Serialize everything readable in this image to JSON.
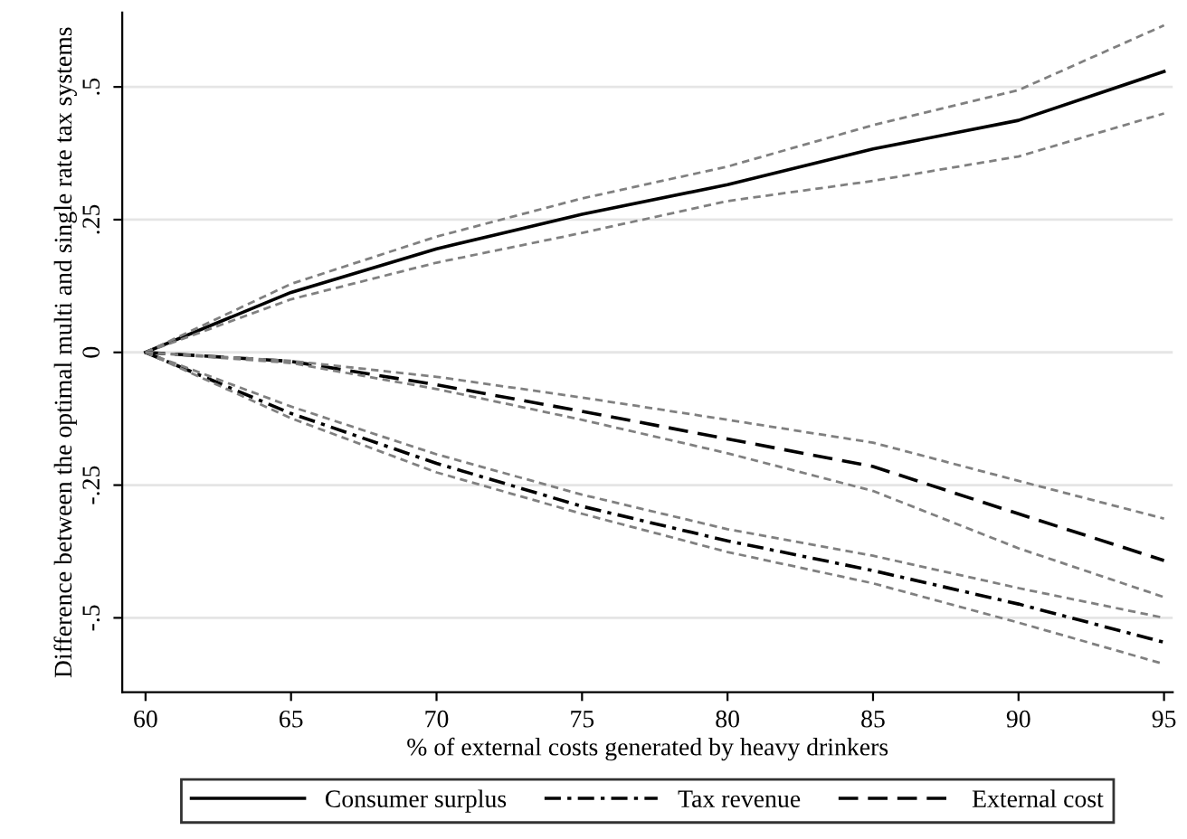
{
  "chart_data": {
    "type": "line",
    "xlabel": "% of external costs generated by heavy drinkers",
    "ylabel": "Difference between the optimal multi and single rate tax systems",
    "x": [
      60,
      65,
      70,
      75,
      80,
      85,
      90,
      95
    ],
    "series": [
      {
        "name": "Consumer surplus",
        "color": "#000000",
        "line_style": "solid",
        "values": [
          0,
          0.113,
          0.195,
          0.26,
          0.316,
          0.383,
          0.437,
          0.529
        ]
      },
      {
        "color": "#808080",
        "line_style": "dotted",
        "values": [
          0,
          0.129,
          0.218,
          0.29,
          0.35,
          0.428,
          0.494,
          0.616
        ]
      },
      {
        "color": "#808080",
        "line_style": "dotted",
        "values": [
          0,
          0.1,
          0.169,
          0.225,
          0.285,
          0.323,
          0.369,
          0.45
        ]
      },
      {
        "name": "Tax revenue",
        "color": "#000000",
        "line_style": "dashdot",
        "values": [
          0,
          -0.115,
          -0.209,
          -0.29,
          -0.355,
          -0.411,
          -0.474,
          -0.546
        ]
      },
      {
        "color": "#808080",
        "line_style": "dotted",
        "values": [
          0,
          -0.102,
          -0.192,
          -0.268,
          -0.333,
          -0.383,
          -0.444,
          -0.5
        ]
      },
      {
        "color": "#808080",
        "line_style": "dotted",
        "values": [
          0,
          -0.124,
          -0.226,
          -0.304,
          -0.376,
          -0.435,
          -0.509,
          -0.587
        ]
      },
      {
        "name": "External cost",
        "color": "#000000",
        "line_style": "dashed",
        "values": [
          0,
          -0.017,
          -0.061,
          -0.111,
          -0.163,
          -0.215,
          -0.304,
          -0.392
        ]
      },
      {
        "color": "#808080",
        "line_style": "dotted",
        "values": [
          0,
          -0.016,
          -0.046,
          -0.085,
          -0.127,
          -0.17,
          -0.242,
          -0.313
        ]
      },
      {
        "color": "#808080",
        "line_style": "dotted",
        "values": [
          0,
          -0.02,
          -0.069,
          -0.127,
          -0.19,
          -0.261,
          -0.369,
          -0.461
        ]
      }
    ],
    "xlim": [
      59.2,
      95.3
    ],
    "ylim": [
      -0.64,
      0.64
    ],
    "xticks": [
      60,
      65,
      70,
      75,
      80,
      85,
      90,
      95
    ],
    "yticks": [
      {
        "value": -0.5,
        "label": "-.5"
      },
      {
        "value": -0.25,
        "label": "-.25"
      },
      {
        "value": 0,
        "label": "0"
      },
      {
        "value": 0.25,
        "label": ".25"
      },
      {
        "value": 0.5,
        "label": ".5"
      }
    ],
    "grid": "y",
    "legend": "bottom",
    "marker": "none"
  }
}
